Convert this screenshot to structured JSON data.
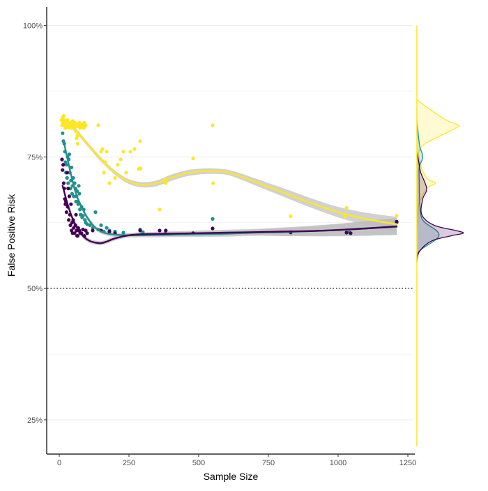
{
  "chart_data": {
    "type": "scatter",
    "xlabel": "Sample Size",
    "ylabel": "False Positive Risk",
    "xlim": [
      -45,
      1275
    ],
    "ylim": [
      0.185,
      1.035
    ],
    "x_ticks": [
      0,
      250,
      500,
      750,
      1000,
      1250
    ],
    "x_tick_labels": [
      "0",
      "250",
      "500",
      "750",
      "1000",
      "1250"
    ],
    "y_ticks": [
      0.25,
      0.5,
      0.75,
      1.0
    ],
    "y_tick_labels": [
      "25%",
      "50%",
      "75%",
      "100%"
    ],
    "y_minor_gridlines": [
      0.375,
      0.625,
      0.875
    ],
    "reference_line": {
      "y": 0.5,
      "style": "dotted"
    },
    "legend": "none",
    "colors": {
      "dark": "#440154",
      "teal": "#21908C",
      "yellow": "#FDE725",
      "ribbon": "#BEBEBE"
    },
    "series": [
      {
        "color": "#FDE725",
        "points": [
          [
            8,
            0.82
          ],
          [
            10,
            0.81
          ],
          [
            12,
            0.825
          ],
          [
            14,
            0.815
          ],
          [
            16,
            0.828
          ],
          [
            18,
            0.81
          ],
          [
            20,
            0.82
          ],
          [
            22,
            0.805
          ],
          [
            24,
            0.818
          ],
          [
            26,
            0.812
          ],
          [
            28,
            0.808
          ],
          [
            30,
            0.82
          ],
          [
            32,
            0.815
          ],
          [
            34,
            0.805
          ],
          [
            36,
            0.812
          ],
          [
            38,
            0.808
          ],
          [
            40,
            0.81
          ],
          [
            42,
            0.815
          ],
          [
            44,
            0.805
          ],
          [
            46,
            0.812
          ],
          [
            48,
            0.818
          ],
          [
            50,
            0.808
          ],
          [
            52,
            0.81
          ],
          [
            54,
            0.805
          ],
          [
            56,
            0.815
          ],
          [
            58,
            0.81
          ],
          [
            60,
            0.798
          ],
          [
            62,
            0.81
          ],
          [
            64,
            0.812
          ],
          [
            66,
            0.808
          ],
          [
            68,
            0.795
          ],
          [
            70,
            0.81
          ],
          [
            72,
            0.815
          ],
          [
            75,
            0.805
          ],
          [
            78,
            0.81
          ],
          [
            80,
            0.812
          ],
          [
            82,
            0.808
          ],
          [
            85,
            0.81
          ],
          [
            88,
            0.805
          ],
          [
            90,
            0.815
          ],
          [
            92,
            0.808
          ],
          [
            95,
            0.81
          ],
          [
            62,
            0.785
          ],
          [
            65,
            0.79
          ],
          [
            66,
            0.775
          ],
          [
            140,
            0.81
          ],
          [
            150,
            0.76
          ],
          [
            155,
            0.765
          ],
          [
            160,
            0.72
          ],
          [
            165,
            0.74
          ],
          [
            170,
            0.76
          ],
          [
            180,
            0.7
          ],
          [
            200,
            0.71
          ],
          [
            210,
            0.735
          ],
          [
            220,
            0.745
          ],
          [
            230,
            0.76
          ],
          [
            240,
            0.72
          ],
          [
            255,
            0.76
          ],
          [
            270,
            0.765
          ],
          [
            285,
            0.727
          ],
          [
            290,
            0.78
          ],
          [
            292,
            0.728
          ],
          [
            360,
            0.65
          ],
          [
            380,
            0.707
          ],
          [
            382,
            0.7
          ],
          [
            480,
            0.747
          ],
          [
            550,
            0.81
          ],
          [
            552,
            0.7
          ],
          [
            830,
            0.637
          ],
          [
            1025,
            0.637
          ],
          [
            1030,
            0.653
          ],
          [
            1210,
            0.638
          ]
        ],
        "smooth": [
          [
            20,
            0.818
          ],
          [
            60,
            0.8
          ],
          [
            100,
            0.775
          ],
          [
            150,
            0.745
          ],
          [
            200,
            0.72
          ],
          [
            250,
            0.703
          ],
          [
            300,
            0.697
          ],
          [
            350,
            0.7
          ],
          [
            400,
            0.71
          ],
          [
            450,
            0.718
          ],
          [
            500,
            0.722
          ],
          [
            550,
            0.723
          ],
          [
            600,
            0.721
          ],
          [
            650,
            0.713
          ],
          [
            700,
            0.703
          ],
          [
            800,
            0.683
          ],
          [
            900,
            0.663
          ],
          [
            1000,
            0.645
          ],
          [
            1100,
            0.632
          ],
          [
            1210,
            0.622
          ]
        ],
        "ribbon_halfwidth": [
          [
            20,
            0.004
          ],
          [
            200,
            0.004
          ],
          [
            400,
            0.006
          ],
          [
            600,
            0.005
          ],
          [
            800,
            0.008
          ],
          [
            1000,
            0.01
          ],
          [
            1210,
            0.014
          ]
        ],
        "density_y": [
          0.6,
          0.63,
          0.66,
          0.69,
          0.7,
          0.71,
          0.74,
          0.77,
          0.8,
          0.81,
          0.82,
          0.85,
          0.86
        ],
        "density_val": [
          0,
          0.02,
          0.04,
          0.2,
          0.38,
          0.2,
          0.06,
          0.1,
          0.7,
          0.85,
          0.6,
          0.12,
          0
        ]
      },
      {
        "color": "#21908C",
        "points": [
          [
            12,
            0.795
          ],
          [
            15,
            0.78
          ],
          [
            18,
            0.775
          ],
          [
            20,
            0.76
          ],
          [
            22,
            0.74
          ],
          [
            24,
            0.72
          ],
          [
            26,
            0.735
          ],
          [
            28,
            0.71
          ],
          [
            30,
            0.75
          ],
          [
            32,
            0.7
          ],
          [
            34,
            0.745
          ],
          [
            36,
            0.755
          ],
          [
            38,
            0.72
          ],
          [
            40,
            0.69
          ],
          [
            42,
            0.705
          ],
          [
            44,
            0.73
          ],
          [
            46,
            0.68
          ],
          [
            48,
            0.695
          ],
          [
            50,
            0.71
          ],
          [
            52,
            0.675
          ],
          [
            55,
            0.7
          ],
          [
            58,
            0.69
          ],
          [
            60,
            0.665
          ],
          [
            62,
            0.675
          ],
          [
            64,
            0.685
          ],
          [
            66,
            0.665
          ],
          [
            68,
            0.66
          ],
          [
            70,
            0.695
          ],
          [
            72,
            0.68
          ],
          [
            74,
            0.65
          ],
          [
            76,
            0.64
          ],
          [
            78,
            0.64
          ],
          [
            80,
            0.655
          ],
          [
            82,
            0.635
          ],
          [
            85,
            0.638
          ],
          [
            88,
            0.65
          ],
          [
            92,
            0.63
          ],
          [
            95,
            0.625
          ],
          [
            100,
            0.622
          ],
          [
            110,
            0.62
          ],
          [
            120,
            0.615
          ],
          [
            130,
            0.645
          ],
          [
            140,
            0.612
          ],
          [
            150,
            0.62
          ],
          [
            160,
            0.608
          ],
          [
            170,
            0.615
          ],
          [
            180,
            0.61
          ],
          [
            200,
            0.608
          ],
          [
            230,
            0.606
          ],
          [
            290,
            0.612
          ],
          [
            300,
            0.607
          ],
          [
            380,
            0.604
          ],
          [
            550,
            0.632
          ],
          [
            830,
            0.606
          ],
          [
            1040,
            0.607
          ],
          [
            1210,
            0.625
          ]
        ],
        "smooth": [
          [
            18,
            0.775
          ],
          [
            30,
            0.745
          ],
          [
            45,
            0.71
          ],
          [
            60,
            0.68
          ],
          [
            80,
            0.655
          ],
          [
            100,
            0.635
          ],
          [
            130,
            0.615
          ],
          [
            160,
            0.606
          ],
          [
            200,
            0.602
          ],
          [
            250,
            0.601
          ],
          [
            300,
            0.601
          ],
          [
            400,
            0.602
          ],
          [
            500,
            0.603
          ],
          [
            600,
            0.604
          ],
          [
            700,
            0.606
          ],
          [
            800,
            0.607
          ],
          [
            900,
            0.609
          ],
          [
            1000,
            0.611
          ],
          [
            1100,
            0.614
          ],
          [
            1210,
            0.617
          ]
        ],
        "ribbon_halfwidth": [
          [
            18,
            0.005
          ],
          [
            150,
            0.004
          ],
          [
            300,
            0.004
          ],
          [
            500,
            0.005
          ],
          [
            700,
            0.006
          ],
          [
            900,
            0.009
          ],
          [
            1210,
            0.016
          ]
        ],
        "density_y": [
          0.55,
          0.57,
          0.59,
          0.6,
          0.61,
          0.63,
          0.66,
          0.7,
          0.73,
          0.75,
          0.77,
          0.8,
          0.82
        ],
        "density_val": [
          0,
          0.04,
          0.35,
          0.45,
          0.4,
          0.12,
          0.06,
          0.05,
          0.05,
          0.12,
          0.06,
          0.02,
          0
        ]
      },
      {
        "color": "#440154",
        "points": [
          [
            10,
            0.745
          ],
          [
            12,
            0.725
          ],
          [
            14,
            0.735
          ],
          [
            16,
            0.7
          ],
          [
            18,
            0.69
          ],
          [
            20,
            0.67
          ],
          [
            22,
            0.66
          ],
          [
            24,
            0.665
          ],
          [
            26,
            0.645
          ],
          [
            28,
            0.72
          ],
          [
            30,
            0.655
          ],
          [
            32,
            0.69
          ],
          [
            34,
            0.63
          ],
          [
            36,
            0.675
          ],
          [
            38,
            0.64
          ],
          [
            40,
            0.62
          ],
          [
            42,
            0.66
          ],
          [
            44,
            0.61
          ],
          [
            46,
            0.625
          ],
          [
            48,
            0.605
          ],
          [
            50,
            0.63
          ],
          [
            52,
            0.615
          ],
          [
            55,
            0.605
          ],
          [
            58,
            0.62
          ],
          [
            60,
            0.64
          ],
          [
            62,
            0.61
          ],
          [
            64,
            0.6
          ],
          [
            66,
            0.6
          ],
          [
            68,
            0.615
          ],
          [
            70,
            0.61
          ],
          [
            72,
            0.61
          ],
          [
            75,
            0.605
          ],
          [
            80,
            0.605
          ],
          [
            85,
            0.612
          ],
          [
            90,
            0.6
          ],
          [
            95,
            0.61
          ],
          [
            100,
            0.605
          ],
          [
            120,
            0.61
          ],
          [
            150,
            0.61
          ],
          [
            180,
            0.608
          ],
          [
            200,
            0.605
          ],
          [
            290,
            0.61
          ],
          [
            360,
            0.61
          ],
          [
            382,
            0.61
          ],
          [
            480,
            0.605
          ],
          [
            550,
            0.614
          ],
          [
            830,
            0.607
          ],
          [
            1030,
            0.606
          ],
          [
            1045,
            0.605
          ],
          [
            1210,
            0.627
          ]
        ],
        "smooth": [
          [
            12,
            0.695
          ],
          [
            30,
            0.66
          ],
          [
            50,
            0.63
          ],
          [
            70,
            0.61
          ],
          [
            90,
            0.597
          ],
          [
            110,
            0.59
          ],
          [
            130,
            0.587
          ],
          [
            150,
            0.586
          ],
          [
            170,
            0.589
          ],
          [
            200,
            0.595
          ],
          [
            250,
            0.601
          ],
          [
            300,
            0.603
          ],
          [
            400,
            0.604
          ],
          [
            500,
            0.605
          ],
          [
            600,
            0.606
          ],
          [
            700,
            0.607
          ],
          [
            800,
            0.608
          ],
          [
            900,
            0.609
          ],
          [
            1000,
            0.611
          ],
          [
            1100,
            0.614
          ],
          [
            1210,
            0.618
          ]
        ],
        "ribbon_halfwidth": [
          [
            12,
            0.005
          ],
          [
            150,
            0.004
          ],
          [
            300,
            0.004
          ],
          [
            500,
            0.005
          ],
          [
            700,
            0.006
          ],
          [
            900,
            0.01
          ],
          [
            1210,
            0.016
          ]
        ],
        "density_y": [
          0.55,
          0.57,
          0.59,
          0.6,
          0.605,
          0.61,
          0.62,
          0.64,
          0.67,
          0.69,
          0.72,
          0.74,
          0.76
        ],
        "density_val": [
          0,
          0.05,
          0.3,
          0.7,
          0.95,
          0.8,
          0.35,
          0.1,
          0.12,
          0.2,
          0.08,
          0.04,
          0
        ]
      }
    ]
  }
}
